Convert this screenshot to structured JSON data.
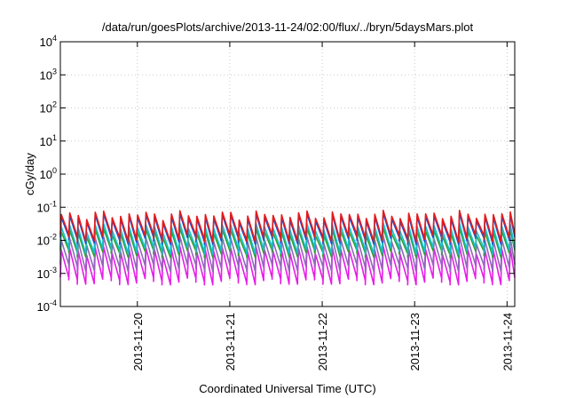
{
  "chart_data": {
    "type": "line",
    "title": "/data/run/goesPlots/archive/2013-11-24/02:00/flux/../bryn/5daysMars.plot",
    "xlabel": "Coordinated Universal Time (UTC)",
    "ylabel": "cGy/day",
    "yscale": "log",
    "ylim": [
      0.0001,
      10000
    ],
    "xlim": [
      "2013-11-19 04:00",
      "2013-11-24 02:00"
    ],
    "grid": true,
    "legend": "none",
    "yticks": [
      {
        "base": "10",
        "exp": "-4",
        "value": 0.0001
      },
      {
        "base": "10",
        "exp": "-3",
        "value": 0.001
      },
      {
        "base": "10",
        "exp": "-2",
        "value": 0.01
      },
      {
        "base": "10",
        "exp": "-1",
        "value": 0.1
      },
      {
        "base": "10",
        "exp": "0",
        "value": 1
      },
      {
        "base": "10",
        "exp": "1",
        "value": 10
      },
      {
        "base": "10",
        "exp": "2",
        "value": 100
      },
      {
        "base": "10",
        "exp": "3",
        "value": 1000
      },
      {
        "base": "10",
        "exp": "4",
        "value": 10000
      }
    ],
    "xticks": [
      {
        "label": "2013-11-20",
        "value": "2013-11-20 00:00"
      },
      {
        "label": "2013-11-21",
        "value": "2013-11-21 00:00"
      },
      {
        "label": "2013-11-22",
        "value": "2013-11-22 00:00"
      },
      {
        "label": "2013-11-23",
        "value": "2013-11-23 00:00"
      },
      {
        "label": "2013-11-24",
        "value": "2013-11-24 00:00"
      }
    ],
    "series_pattern": {
      "period_hours": 2.2,
      "peaks": {
        "red": 0.06,
        "blue": 0.05,
        "teal": 0.025,
        "green": 0.018,
        "purple": 0.01,
        "magenta": 0.005
      },
      "troughs": {
        "red": 0.012,
        "blue": 0.01,
        "teal": 0.005,
        "green": 0.004,
        "purple": 0.0015,
        "magenta": 0.0006
      }
    },
    "series": [
      {
        "color": "#e41a1c",
        "values": [
          [
            "2013-11-19 04:00",
            0.012
          ],
          [
            "2013-11-19 04:20",
            0.05
          ],
          [
            "2013-11-19 06:10",
            0.012
          ],
          [
            "2013-11-19 15:00",
            0.055
          ],
          [
            "2013-11-19 17:00",
            0.012
          ],
          [
            "2013-11-19 20:00",
            0.085
          ],
          [
            "2013-11-19 22:00",
            0.014
          ],
          [
            "2013-11-22 14:00",
            0.075
          ],
          [
            "2013-11-22 16:00",
            0.014
          ],
          [
            "2013-11-23 12:00",
            0.075
          ],
          [
            "2013-11-23 14:00",
            0.013
          ],
          [
            "2013-11-24 02:00",
            0.018
          ]
        ]
      },
      {
        "color": "#1f4fd0",
        "values": [
          [
            "2013-11-19 04:00",
            0.01
          ],
          [
            "2013-11-19 04:20",
            0.045
          ],
          [
            "2013-11-19 06:10",
            0.01
          ],
          [
            "2013-11-21 12:00",
            0.05
          ],
          [
            "2013-11-21 14:00",
            0.01
          ],
          [
            "2013-11-24 02:00",
            0.015
          ]
        ]
      },
      {
        "color": "#17becf",
        "values": [
          [
            "2013-11-19 04:00",
            0.005
          ],
          [
            "2013-11-19 04:20",
            0.025
          ],
          [
            "2013-11-19 06:10",
            0.005
          ],
          [
            "2013-11-24 02:00",
            0.008
          ]
        ]
      },
      {
        "color": "#2ca02c",
        "values": [
          [
            "2013-11-19 04:00",
            0.004
          ],
          [
            "2013-11-19 04:20",
            0.018
          ],
          [
            "2013-11-19 06:10",
            0.004
          ],
          [
            "2013-11-24 02:00",
            0.006
          ]
        ]
      },
      {
        "color": "#9467bd",
        "values": [
          [
            "2013-11-19 04:00",
            0.0015
          ],
          [
            "2013-11-19 04:20",
            0.01
          ],
          [
            "2013-11-19 06:10",
            0.0015
          ],
          [
            "2013-11-24 02:00",
            0.003
          ]
        ]
      },
      {
        "color": "#e81ce8",
        "values": [
          [
            "2013-11-19 04:00",
            0.0006
          ],
          [
            "2013-11-19 04:20",
            0.005
          ],
          [
            "2013-11-19 06:10",
            0.0006
          ],
          [
            "2013-11-24 02:00",
            0.0015
          ]
        ]
      }
    ]
  }
}
